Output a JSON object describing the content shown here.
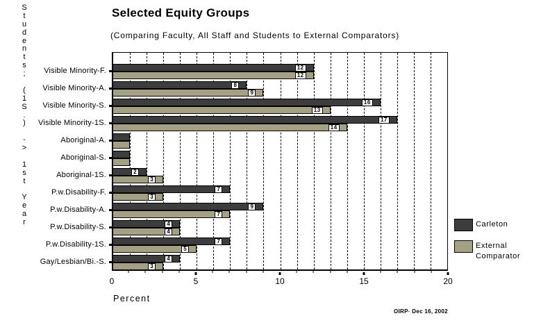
{
  "header": {
    "title": "Selected Equity Groups",
    "subtitle": "(Comparing Faculty, All Staff and Students to External Comparators)"
  },
  "footer": {
    "credit": "OIRP· Dec 16, 2002"
  },
  "chart_data": {
    "type": "bar",
    "orientation": "horizontal",
    "title": "Selected Equity Groups",
    "subtitle": "(Comparing Faculty, All Staff and Students to External Comparators)",
    "xlabel": "Percent",
    "y_axis_title": "Students; (1S.) -> 1st Year",
    "xlim": [
      0,
      20
    ],
    "x_ticks": [
      0,
      5,
      10,
      15,
      20
    ],
    "minor_tick_interval": 1,
    "gridline_interval": 1,
    "gridline_style": "dashed",
    "grid": true,
    "legend_position": "right",
    "categories": [
      "Visible Minority-F.",
      "Visible Minority-A.",
      "Visible Minority-S.",
      "Visible Minority-1S.",
      "Aboriginal-A.",
      "Aboriginal-S.",
      "Aboriginal-1S.",
      "P.w.Disability-F.",
      "P.w.Disability-A.",
      "P.w.Disability-S.",
      "P.w.Disability-1S.",
      "Gay/Lesbian/Bi.-S."
    ],
    "series": [
      {
        "name": "Carleton",
        "legend_lines": [
          "Carleton"
        ],
        "color": "#3d3d3d",
        "values": [
          12,
          8,
          16,
          17,
          1,
          1,
          2,
          7,
          9,
          4,
          7,
          4
        ],
        "labels": [
          "12",
          "8",
          "16",
          "17",
          "",
          "",
          "2",
          "7",
          "9",
          "4",
          "7",
          "4"
        ]
      },
      {
        "name": "External Comparator",
        "legend_lines": [
          "External",
          "Comparator"
        ],
        "color": "#a3a182",
        "values": [
          12,
          9,
          13,
          14,
          1,
          1,
          3,
          3,
          7,
          4,
          5,
          3
        ],
        "labels": [
          "12",
          "9",
          "13",
          "14",
          "",
          "",
          "3",
          "3",
          "7",
          "4",
          "5",
          "3"
        ]
      }
    ],
    "colors": {
      "bar_border": "#000000",
      "background": "#ffffff",
      "gridline": "#000000"
    }
  }
}
